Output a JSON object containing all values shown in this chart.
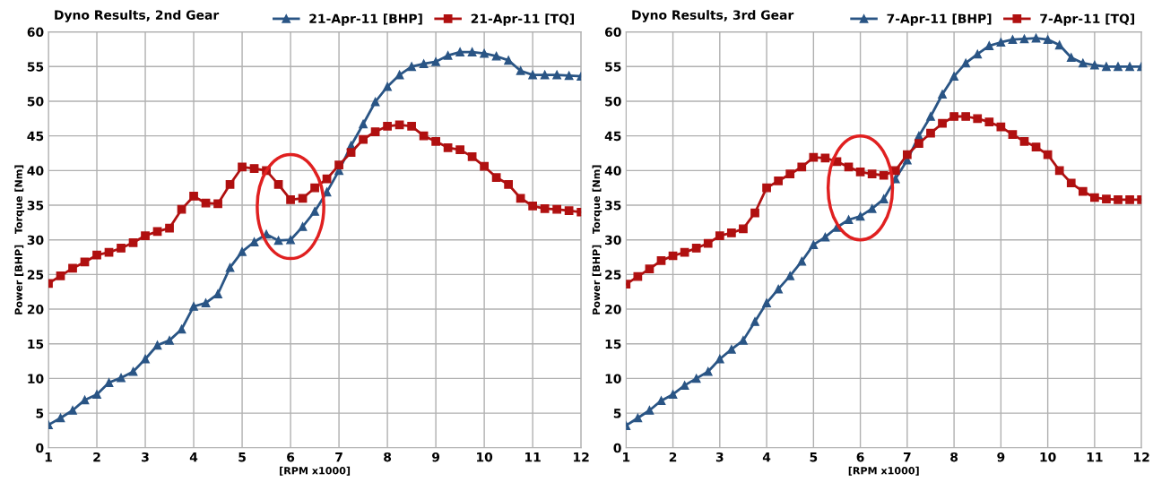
{
  "chart_data": [
    {
      "type": "line",
      "title": "Dyno Results, 2nd Gear",
      "xlabel": "[RPM x1000]",
      "ylabel": "Power [BHP]   Torque [Nm]",
      "x": [
        1,
        1.25,
        1.5,
        1.75,
        2,
        2.25,
        2.5,
        2.75,
        3,
        3.25,
        3.5,
        3.75,
        4,
        4.25,
        4.5,
        4.75,
        5,
        5.25,
        5.5,
        5.75,
        6,
        6.25,
        6.5,
        6.75,
        7,
        7.25,
        7.5,
        7.75,
        8,
        8.25,
        8.5,
        8.75,
        9,
        9.25,
        9.5,
        9.75,
        10,
        10.25,
        10.5,
        10.75,
        11,
        11.25,
        11.5,
        11.75,
        12
      ],
      "series": [
        {
          "name": "21-Apr-11 [BHP]",
          "color": "#2a5585",
          "marker": "triangle",
          "values": [
            3.3,
            4.3,
            5.4,
            6.9,
            7.7,
            9.4,
            10.1,
            11.0,
            12.8,
            14.8,
            15.5,
            17.1,
            20.4,
            20.9,
            22.2,
            26.0,
            28.3,
            29.7,
            30.8,
            29.9,
            30.0,
            31.9,
            34.1,
            36.9,
            40.0,
            43.6,
            46.7,
            49.9,
            52.1,
            53.8,
            55.0,
            55.4,
            55.7,
            56.6,
            57.1,
            57.1,
            56.9,
            56.5,
            55.9,
            54.4,
            53.8,
            53.8,
            53.8,
            53.7,
            53.6
          ]
        },
        {
          "name": "21-Apr-11 [TQ]",
          "color": "#b01010",
          "marker": "square",
          "values": [
            23.7,
            24.8,
            25.9,
            26.8,
            27.8,
            28.2,
            28.8,
            29.6,
            30.6,
            31.2,
            31.7,
            34.4,
            36.3,
            35.3,
            35.2,
            38.0,
            40.5,
            40.3,
            40.0,
            38.0,
            35.8,
            36.0,
            37.5,
            38.8,
            40.8,
            42.6,
            44.5,
            45.6,
            46.4,
            46.6,
            46.4,
            45.0,
            44.2,
            43.3,
            43.0,
            42.0,
            40.6,
            39.0,
            38.0,
            36.0,
            34.9,
            34.5,
            34.4,
            34.2,
            34.0
          ]
        }
      ],
      "xlim": [
        1,
        12
      ],
      "xticks": [
        1,
        2,
        3,
        4,
        5,
        6,
        7,
        8,
        9,
        10,
        11,
        12
      ],
      "ylim": [
        0,
        60
      ],
      "yticks": [
        0,
        5,
        10,
        15,
        20,
        25,
        30,
        35,
        40,
        45,
        50,
        55,
        60
      ],
      "grid": true,
      "legend": "top",
      "line_style": "solid"
    },
    {
      "type": "line",
      "title": "Dyno Results, 3rd Gear",
      "xlabel": "[RPM x1000]",
      "ylabel": "Power [BHP]   Torque [Nm]",
      "x": [
        1,
        1.25,
        1.5,
        1.75,
        2,
        2.25,
        2.5,
        2.75,
        3,
        3.25,
        3.5,
        3.75,
        4,
        4.25,
        4.5,
        4.75,
        5,
        5.25,
        5.5,
        5.75,
        6,
        6.25,
        6.5,
        6.75,
        7,
        7.25,
        7.5,
        7.75,
        8,
        8.25,
        8.5,
        8.75,
        9,
        9.25,
        9.5,
        9.75,
        10,
        10.25,
        10.5,
        10.75,
        11,
        11.25,
        11.5,
        11.75,
        12
      ],
      "series": [
        {
          "name": "7-Apr-11 [BHP]",
          "color": "#2a5585",
          "marker": "triangle",
          "values": [
            3.2,
            4.3,
            5.4,
            6.8,
            7.7,
            9.0,
            10.0,
            11.0,
            12.8,
            14.2,
            15.5,
            18.2,
            20.9,
            22.9,
            24.8,
            26.9,
            29.3,
            30.4,
            31.8,
            32.9,
            33.4,
            34.5,
            35.9,
            38.8,
            41.5,
            45.0,
            47.8,
            51.0,
            53.6,
            55.5,
            56.8,
            58.0,
            58.5,
            58.9,
            59.0,
            59.1,
            58.9,
            58.1,
            56.3,
            55.5,
            55.2,
            55.0,
            55.0,
            55.0,
            55.0
          ]
        },
        {
          "name": "7-Apr-11 [TQ]",
          "color": "#b01010",
          "marker": "square",
          "values": [
            23.6,
            24.7,
            25.8,
            27.0,
            27.7,
            28.2,
            28.8,
            29.5,
            30.6,
            31.0,
            31.6,
            33.9,
            37.5,
            38.5,
            39.5,
            40.5,
            41.9,
            41.8,
            41.3,
            40.5,
            39.8,
            39.5,
            39.3,
            40.0,
            42.3,
            43.9,
            45.4,
            46.8,
            47.8,
            47.8,
            47.5,
            47.0,
            46.3,
            45.2,
            44.2,
            43.4,
            42.3,
            40.0,
            38.2,
            37.0,
            36.1,
            35.9,
            35.8,
            35.8,
            35.8
          ]
        }
      ],
      "xlim": [
        1,
        12
      ],
      "xticks": [
        1,
        2,
        3,
        4,
        5,
        6,
        7,
        8,
        9,
        10,
        11,
        12
      ],
      "ylim": [
        0,
        60
      ],
      "yticks": [
        0,
        5,
        10,
        15,
        20,
        25,
        30,
        35,
        40,
        45,
        50,
        55,
        60
      ],
      "grid": true,
      "legend": "top",
      "line_style": "solid"
    }
  ]
}
